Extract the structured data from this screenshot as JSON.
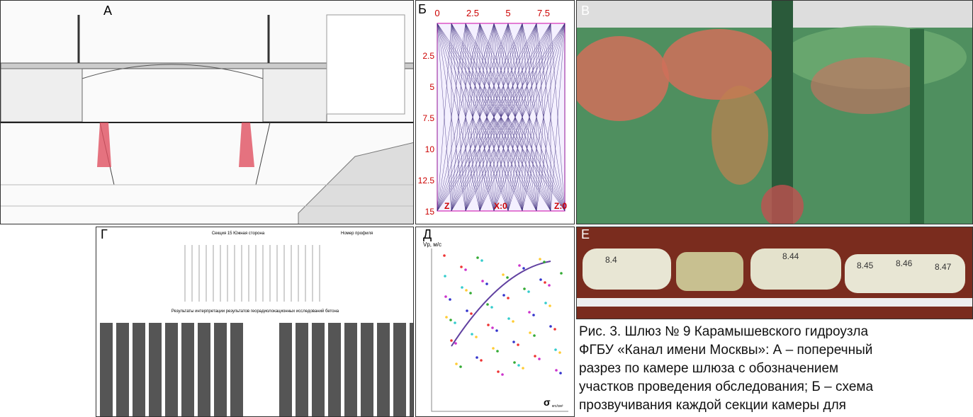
{
  "panels": {
    "a": {
      "letter": "А"
    },
    "b": {
      "letter": "Б",
      "top_ticks": [
        "0",
        "2.5",
        "5",
        "7.5"
      ],
      "left_ticks": [
        "2.5",
        "5",
        "7.5",
        "10",
        "12.5",
        "15"
      ],
      "bottom_labels": [
        "Z",
        "X:0",
        "Z:0"
      ]
    },
    "c": {
      "letter": "В"
    },
    "d": {
      "letter": "Г",
      "title": "Секция 15 Южная сторона",
      "profile_label": "Номер профиля",
      "subtitle": "Результаты интерпретации результатов георадиолокационных исследований бетона"
    },
    "e": {
      "letter": "Д",
      "y_label": "Vp, м/с",
      "x_label": "σ",
      "x_unit": "кгс/см²"
    },
    "f": {
      "letter": "Е",
      "core_labels": [
        "8.4",
        "8.44",
        "8.45",
        "8.46",
        "8.47"
      ]
    }
  },
  "caption": {
    "lines": [
      "Рис. 3. Шлюз № 9 Карамышевского гидроузла",
      "ФГБУ «Канал имени Москвы»: А – поперечный",
      "разрез по камере шлюза с обозначением",
      "участков проведения обследования; Б – схема",
      "прозвучивания каждой секции камеры для"
    ]
  }
}
